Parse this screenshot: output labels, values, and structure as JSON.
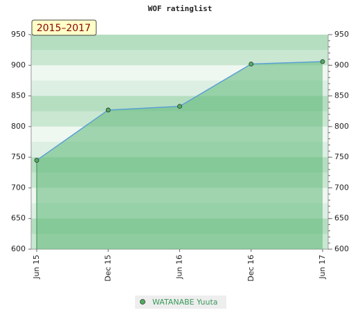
{
  "chart_data": {
    "type": "area",
    "title": "WOF ratinglist",
    "badge": "2015–2017",
    "categories": [
      "Jun 15",
      "Dec 15",
      "Jun 16",
      "Dec 16",
      "Jun 17"
    ],
    "series": [
      {
        "name": "WATANABE Yuuta",
        "color": "#5a9fd4",
        "fill": "#5fb878",
        "marker": "#4caf60",
        "values": [
          745,
          827,
          833,
          902,
          906
        ]
      }
    ],
    "ylim": [
      600,
      950
    ],
    "yticks": [
      600,
      650,
      700,
      750,
      800,
      850,
      900,
      950
    ],
    "grid": true
  }
}
